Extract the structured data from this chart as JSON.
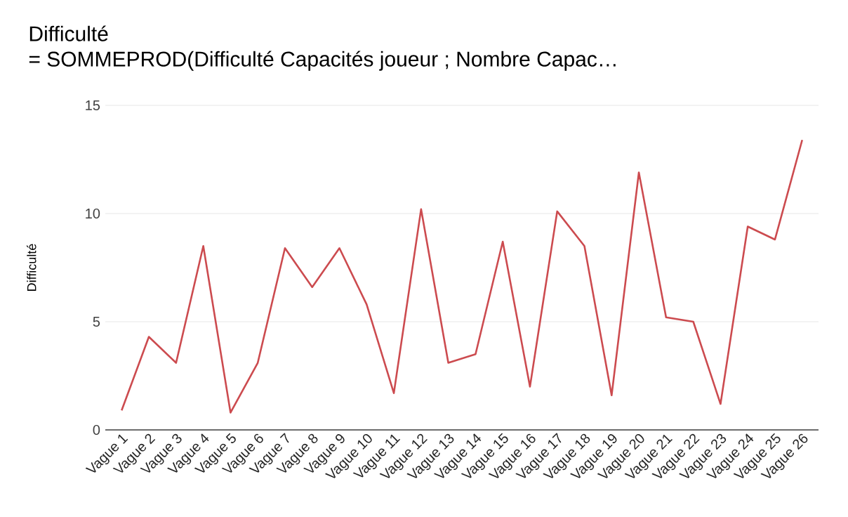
{
  "chart_data": {
    "type": "line",
    "title": "Difficulté",
    "subtitle": "= SOMMEPROD(Difficulté Capacités joueur ; Nombre Capac…",
    "ylabel": "Difficulté",
    "categories": [
      "Vague 1",
      "Vague 2",
      "Vague 3",
      "Vague 4",
      "Vague 5",
      "Vague 6",
      "Vague 7",
      "Vague 8",
      "Vague 9",
      "Vague 10",
      "Vague 11",
      "Vague 12",
      "Vague 13",
      "Vague 14",
      "Vague 15",
      "Vague 16",
      "Vague 17",
      "Vague 18",
      "Vague 19",
      "Vague 20",
      "Vague 21",
      "Vague 22",
      "Vague 23",
      "Vague 24",
      "Vague 25",
      "Vague 26"
    ],
    "series": [
      {
        "color": "#cc4b4f",
        "values": [
          0.9,
          4.3,
          3.1,
          8.5,
          0.8,
          3.1,
          8.4,
          6.6,
          8.4,
          5.8,
          1.7,
          10.2,
          3.1,
          3.5,
          8.7,
          2.0,
          10.1,
          8.5,
          1.6,
          11.9,
          5.2,
          5.0,
          1.2,
          9.4,
          8.8,
          13.4
        ]
      }
    ],
    "ylim": [
      0,
      15
    ],
    "yticks": [
      0,
      5,
      10,
      15
    ],
    "grid": "y",
    "marker": "none",
    "line_style": "solid"
  }
}
